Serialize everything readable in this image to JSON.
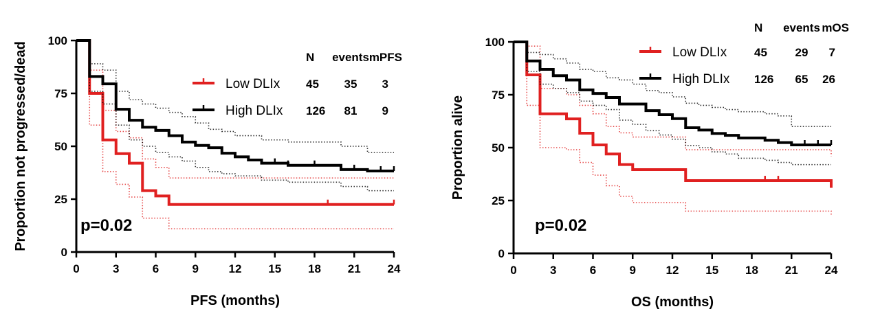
{
  "chart_data": [
    {
      "type": "line",
      "subtype": "kaplan-meier",
      "xlabel": "PFS (months)",
      "ylabel": "Proportion not progressed/dead",
      "xlim": [
        0,
        24
      ],
      "ylim": [
        0,
        100
      ],
      "xticks": [
        0,
        3,
        6,
        9,
        12,
        15,
        18,
        21,
        24
      ],
      "yticks": [
        0,
        25,
        50,
        75,
        100
      ],
      "grid": false,
      "legend_position": "top-right",
      "legend_header": [
        "N",
        "events",
        "mPFS"
      ],
      "annotation": "p=0.02",
      "series": [
        {
          "name": "Low DLIx",
          "color": "#e02020",
          "N": "45",
          "events": "35",
          "median": "3",
          "steps": [
            [
              0,
              100
            ],
            [
              1,
              75
            ],
            [
              2,
              53
            ],
            [
              3,
              46.5
            ],
            [
              4,
              42
            ],
            [
              5,
              29
            ],
            [
              6,
              26.5
            ],
            [
              7,
              22.5
            ]
          ],
          "censors": [
            19,
            24
          ],
          "ci_upper": [
            [
              0,
              100
            ],
            [
              1,
              86
            ],
            [
              2,
              67
            ],
            [
              3,
              57
            ],
            [
              4,
              54
            ],
            [
              5,
              44
            ],
            [
              6,
              40
            ],
            [
              7,
              35
            ]
          ],
          "ci_lower": [
            [
              0,
              100
            ],
            [
              1,
              60
            ],
            [
              2,
              38
            ],
            [
              3,
              32
            ],
            [
              4,
              26
            ],
            [
              5,
              16
            ],
            [
              7,
              11
            ]
          ]
        },
        {
          "name": "High DLIx",
          "color": "#000000",
          "N": "126",
          "events": "81",
          "median": "9",
          "steps": [
            [
              0,
              100
            ],
            [
              1,
              83
            ],
            [
              2,
              79.5
            ],
            [
              3,
              67.5
            ],
            [
              4,
              62.3
            ],
            [
              5,
              59
            ],
            [
              6,
              57.5
            ],
            [
              7,
              55
            ],
            [
              8,
              52
            ],
            [
              9,
              50.4
            ],
            [
              10,
              49.3
            ],
            [
              11,
              46.7
            ],
            [
              12,
              45
            ],
            [
              13,
              43.5
            ],
            [
              14,
              42
            ],
            [
              16,
              41
            ],
            [
              20,
              39
            ],
            [
              22,
              38.3
            ]
          ],
          "censors": [
            15,
            16,
            18,
            21,
            23,
            24
          ],
          "ci_upper": [
            [
              0,
              100
            ],
            [
              1,
              89
            ],
            [
              2,
              86
            ],
            [
              3,
              76
            ],
            [
              4,
              72
            ],
            [
              5,
              70
            ],
            [
              6,
              68
            ],
            [
              7,
              66
            ],
            [
              8,
              64
            ],
            [
              9,
              61
            ],
            [
              10,
              58
            ],
            [
              11,
              57
            ],
            [
              12,
              55
            ],
            [
              14,
              53
            ],
            [
              16,
              52
            ],
            [
              20,
              50
            ],
            [
              22,
              47
            ]
          ],
          "ci_lower": [
            [
              0,
              100
            ],
            [
              1,
              76
            ],
            [
              2,
              70
            ],
            [
              3,
              60
            ],
            [
              4,
              53
            ],
            [
              5,
              50
            ],
            [
              6,
              47
            ],
            [
              7,
              45
            ],
            [
              8,
              43
            ],
            [
              9,
              40
            ],
            [
              10,
              38
            ],
            [
              11,
              37
            ],
            [
              12,
              36
            ],
            [
              14,
              34
            ],
            [
              16,
              33
            ],
            [
              20,
              31
            ],
            [
              22,
              29
            ]
          ]
        }
      ]
    },
    {
      "type": "line",
      "subtype": "kaplan-meier",
      "xlabel": "OS (months)",
      "ylabel": "Proportion alive",
      "xlim": [
        0,
        24
      ],
      "ylim": [
        0,
        100
      ],
      "xticks": [
        0,
        3,
        6,
        9,
        12,
        15,
        18,
        21,
        24
      ],
      "yticks": [
        0,
        25,
        50,
        75,
        100
      ],
      "grid": false,
      "legend_position": "top-right",
      "legend_header": [
        "N",
        "events",
        "mOS"
      ],
      "annotation": "p=0.02",
      "series": [
        {
          "name": "Low DLIx",
          "color": "#e02020",
          "N": "45",
          "events": "29",
          "median": "7",
          "steps": [
            [
              0,
              100
            ],
            [
              1,
              84.4
            ],
            [
              2,
              66
            ],
            [
              4,
              63.6
            ],
            [
              5,
              56.8
            ],
            [
              6,
              51.3
            ],
            [
              7,
              47
            ],
            [
              8,
              42
            ],
            [
              9,
              39.6
            ],
            [
              13,
              34.4
            ],
            [
              24,
              31
            ]
          ],
          "censors": [
            19,
            20
          ],
          "ci_upper": [
            [
              0,
              100
            ],
            [
              1,
              98
            ],
            [
              2,
              78
            ],
            [
              4,
              75
            ],
            [
              5,
              70
            ],
            [
              6,
              66
            ],
            [
              7,
              60
            ],
            [
              8,
              57
            ],
            [
              9,
              55
            ],
            [
              13,
              49
            ],
            [
              24,
              46
            ]
          ],
          "ci_lower": [
            [
              0,
              100
            ],
            [
              1,
              70
            ],
            [
              2,
              50
            ],
            [
              4,
              49
            ],
            [
              5,
              43
            ],
            [
              6,
              37
            ],
            [
              7,
              32
            ],
            [
              8,
              27
            ],
            [
              9,
              24
            ],
            [
              13,
              20
            ],
            [
              24,
              18
            ]
          ]
        },
        {
          "name": "High DLIx",
          "color": "#000000",
          "N": "126",
          "events": "65",
          "median": "26",
          "steps": [
            [
              0,
              100
            ],
            [
              1,
              91
            ],
            [
              2,
              87
            ],
            [
              3,
              84
            ],
            [
              4,
              82
            ],
            [
              5,
              77.3
            ],
            [
              6,
              75.6
            ],
            [
              7,
              73.7
            ],
            [
              8,
              70.6
            ],
            [
              10,
              67.5
            ],
            [
              11,
              65.6
            ],
            [
              12,
              63.7
            ],
            [
              13,
              59.4
            ],
            [
              14,
              58.3
            ],
            [
              15,
              56.7
            ],
            [
              16,
              55.8
            ],
            [
              17,
              54.6
            ],
            [
              19,
              53.5
            ],
            [
              20,
              52.4
            ],
            [
              21,
              51.3
            ]
          ],
          "censors": [
            7,
            22,
            23,
            24
          ],
          "ci_upper": [
            [
              0,
              100
            ],
            [
              1,
              95
            ],
            [
              2,
              94
            ],
            [
              3,
              92
            ],
            [
              4,
              90
            ],
            [
              5,
              87
            ],
            [
              6,
              86
            ],
            [
              7,
              83
            ],
            [
              8,
              82
            ],
            [
              9,
              80
            ],
            [
              10,
              77
            ],
            [
              11,
              76
            ],
            [
              12,
              74
            ],
            [
              13,
              71
            ],
            [
              14,
              70
            ],
            [
              15,
              69
            ],
            [
              16,
              68
            ],
            [
              17,
              67
            ],
            [
              19,
              66
            ],
            [
              20,
              65
            ],
            [
              21,
              60
            ]
          ],
          "ci_lower": [
            [
              0,
              100
            ],
            [
              1,
              86
            ],
            [
              2,
              80
            ],
            [
              3,
              78
            ],
            [
              4,
              76
            ],
            [
              5,
              72
            ],
            [
              6,
              70
            ],
            [
              7,
              68
            ],
            [
              8,
              63
            ],
            [
              9,
              61
            ],
            [
              10,
              58
            ],
            [
              11,
              56
            ],
            [
              12,
              54
            ],
            [
              13,
              51
            ],
            [
              14,
              50
            ],
            [
              15,
              48
            ],
            [
              16,
              47
            ],
            [
              17,
              45
            ],
            [
              19,
              44
            ],
            [
              20,
              43
            ],
            [
              21,
              42
            ]
          ]
        }
      ]
    }
  ]
}
